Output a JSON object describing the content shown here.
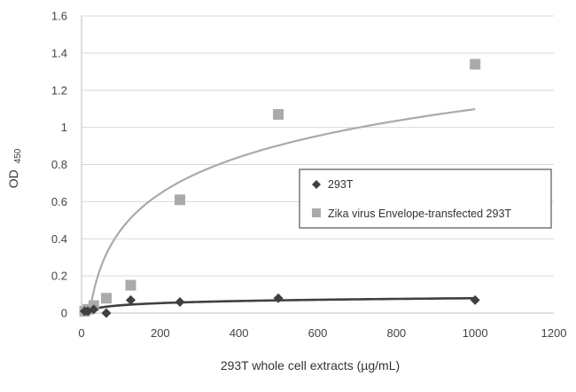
{
  "chart_data": {
    "type": "scatter",
    "xlabel": "293T whole cell extracts (µg/mL)",
    "ylabel_main": "OD",
    "ylabel_sub": "450",
    "xlim": [
      0,
      1200
    ],
    "ylim": [
      0,
      1.6
    ],
    "xticks": [
      0,
      200,
      400,
      600,
      800,
      1000,
      1200
    ],
    "yticks": [
      0,
      0.2,
      0.4,
      0.6,
      0.8,
      1,
      1.2,
      1.4,
      1.6
    ],
    "ytick_labels": [
      "0",
      "0.2",
      "0.4",
      "0.6",
      "0.8",
      "1",
      "1.2",
      "1.4",
      "1.6"
    ],
    "grid": "horizontal",
    "legend_position": "right",
    "series": [
      {
        "name": "293T",
        "marker": "diamond",
        "color": "#404040",
        "x": [
          8,
          16,
          31,
          63,
          125,
          250,
          500,
          1000
        ],
        "y": [
          0.01,
          0.01,
          0.02,
          0.0,
          0.07,
          0.06,
          0.08,
          0.07
        ],
        "trend": {
          "type": "logarithmic",
          "color": "#404040"
        }
      },
      {
        "name": "Zika virus Envelope-transfected 293T",
        "marker": "square",
        "color": "#aaaaaa",
        "x": [
          8,
          16,
          31,
          63,
          125,
          250,
          500,
          1000
        ],
        "y": [
          0.01,
          0.02,
          0.04,
          0.08,
          0.15,
          0.61,
          1.07,
          1.34
        ],
        "trend": {
          "type": "logarithmic",
          "color": "#aaaaaa"
        }
      }
    ]
  }
}
